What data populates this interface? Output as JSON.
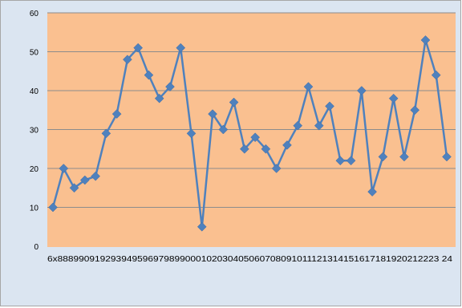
{
  "chart_data": {
    "type": "line",
    "title": "",
    "xlabel": "",
    "ylabel": "",
    "ylim": [
      0,
      60
    ],
    "y_ticks": [
      "0",
      "10",
      "20",
      "30",
      "40",
      "50",
      "60"
    ],
    "x_tick_text": "6x888990919293949596979899000102030405060708091011121314151617181920212223 24",
    "grid": "horizontal",
    "legend": "none",
    "colors": {
      "frame": "#dbe5f1",
      "plot_area": "#fac090",
      "line": "#4f81bd",
      "grid": "#8c8c8c"
    },
    "series": [
      {
        "values": [
          10,
          20,
          15,
          17,
          18,
          29,
          34,
          48,
          51,
          44,
          38,
          41,
          51,
          29,
          5,
          34,
          30,
          37,
          25,
          28,
          25,
          20,
          26,
          31,
          41,
          31,
          36,
          22,
          22,
          40,
          14,
          23,
          38,
          23,
          35,
          53,
          44,
          23
        ]
      }
    ]
  }
}
